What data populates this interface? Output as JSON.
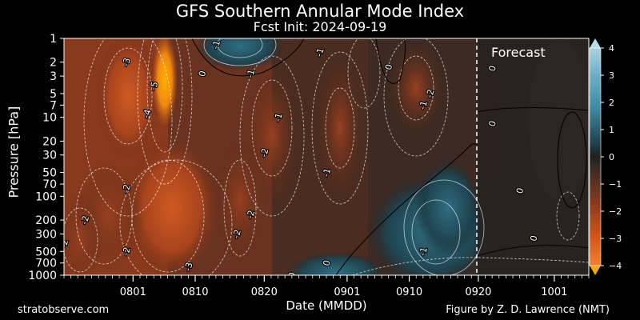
{
  "title": "GFS Southern Annular Mode Index",
  "subtitle": "Fcst Init: 2024-09-19",
  "forecast_label": "Forecast",
  "footer": {
    "site": "stratobserve.com",
    "credit": "Figure by Z. D. Lawrence (NMT)"
  },
  "colors": {
    "background": "#000000",
    "positive": "#3a8fb0",
    "negative": "#d95a1c",
    "extreme_negative": "#f5a800",
    "contour": "#ffffff"
  },
  "chart_data": {
    "type": "heatmap",
    "xlabel": "Date (MMDD)",
    "ylabel": "Pressure [hPa]",
    "x_start": "0722",
    "x_end": "1006",
    "x_ticks": [
      "0801",
      "0810",
      "0820",
      "0901",
      "0910",
      "0920",
      "1001"
    ],
    "y_ticks": [
      1,
      2,
      3,
      5,
      7,
      10,
      20,
      30,
      50,
      70,
      100,
      200,
      300,
      500,
      700,
      1000
    ],
    "y_scale": "log",
    "y_inverted": true,
    "ylim": [
      1000,
      1
    ],
    "forecast_start": "0919",
    "colorbar": {
      "ticks": [
        4,
        3,
        2,
        1,
        0,
        -1,
        -2,
        -3,
        -4
      ],
      "range": [
        -4,
        4
      ]
    },
    "contour_labels": [
      {
        "text": "-3",
        "date": "0731",
        "p": 2
      },
      {
        "text": "-5",
        "date": "0804",
        "p": 4
      },
      {
        "text": "-4",
        "date": "0803",
        "p": 9
      },
      {
        "text": "-2",
        "date": "0731",
        "p": 80
      },
      {
        "text": "-2",
        "date": "0725",
        "p": 200
      },
      {
        "text": "-2",
        "date": "0722",
        "p": 400
      },
      {
        "text": "-2",
        "date": "0731",
        "p": 500
      },
      {
        "text": "-3",
        "date": "0809",
        "p": 780
      },
      {
        "text": "-1",
        "date": "0813",
        "p": 1.2
      },
      {
        "text": "0",
        "date": "0811",
        "p": 2.8
      },
      {
        "text": "-1",
        "date": "0818",
        "p": 2.8
      },
      {
        "text": "-1",
        "date": "0828",
        "p": 1.5
      },
      {
        "text": "-1",
        "date": "0822",
        "p": 10
      },
      {
        "text": "-2",
        "date": "0820",
        "p": 28
      },
      {
        "text": "-1",
        "date": "0829",
        "p": 50
      },
      {
        "text": "-2",
        "date": "0818",
        "p": 170
      },
      {
        "text": "-2",
        "date": "0816",
        "p": 300
      },
      {
        "text": "0",
        "date": "0824",
        "p": 1000
      },
      {
        "text": "0",
        "date": "0829",
        "p": 700
      },
      {
        "text": "0",
        "date": "0907",
        "p": 2.3
      },
      {
        "text": "-2",
        "date": "0913",
        "p": 5
      },
      {
        "text": "-1",
        "date": "0912",
        "p": 7
      },
      {
        "text": "-1",
        "date": "0912",
        "p": 500
      },
      {
        "text": "0",
        "date": "0922",
        "p": 2.4
      },
      {
        "text": "0",
        "date": "0922",
        "p": 12
      },
      {
        "text": "0",
        "date": "0926",
        "p": 85
      },
      {
        "text": "0",
        "date": "0928",
        "p": 340
      }
    ]
  }
}
